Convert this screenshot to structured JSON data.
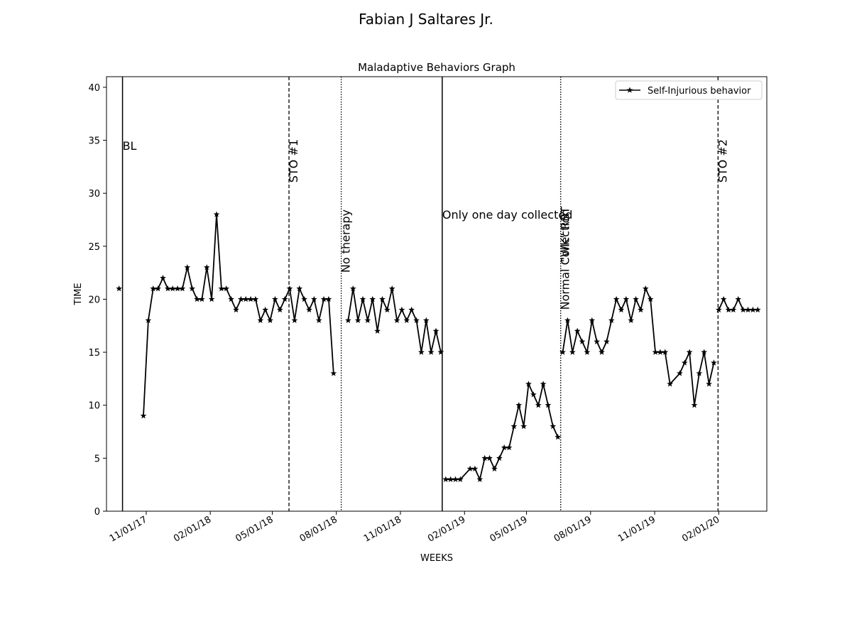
{
  "page": {
    "title": "Fabian J  Saltares Jr."
  },
  "chart_data": {
    "type": "line",
    "title": "Maladaptive Behaviors Graph",
    "xlabel": "WEEKS",
    "ylabel": "TIME",
    "ylim": [
      0,
      41
    ],
    "xlim": [
      "2017-09-05",
      "2020-04-10"
    ],
    "xticks": [
      {
        "date": "2017-11-01",
        "label": "11/01/17"
      },
      {
        "date": "2018-02-01",
        "label": "02/01/18"
      },
      {
        "date": "2018-05-01",
        "label": "05/01/18"
      },
      {
        "date": "2018-08-01",
        "label": "08/01/18"
      },
      {
        "date": "2018-11-01",
        "label": "11/01/18"
      },
      {
        "date": "2019-02-01",
        "label": "02/01/19"
      },
      {
        "date": "2019-05-01",
        "label": "05/01/19"
      },
      {
        "date": "2019-08-01",
        "label": "08/01/19"
      },
      {
        "date": "2019-11-01",
        "label": "11/01/19"
      },
      {
        "date": "2020-02-01",
        "label": "02/01/20"
      }
    ],
    "yticks": [
      0,
      5,
      10,
      15,
      20,
      25,
      30,
      35,
      40
    ],
    "grid": false,
    "legend": "upper-right",
    "series": [
      {
        "name": "Self-Injurious behavior",
        "color": "#000000",
        "marker": "star",
        "segments": [
          [
            [
              "2017-09-23",
              21
            ]
          ],
          [
            [
              "2017-10-28",
              9
            ],
            [
              "2017-11-04",
              18
            ],
            [
              "2017-11-11",
              21
            ],
            [
              "2017-11-18",
              21
            ],
            [
              "2017-11-25",
              22
            ],
            [
              "2017-12-02",
              21
            ],
            [
              "2017-12-09",
              21
            ],
            [
              "2017-12-16",
              21
            ],
            [
              "2017-12-23",
              21
            ],
            [
              "2017-12-30",
              23
            ],
            [
              "2018-01-06",
              21
            ],
            [
              "2018-01-13",
              20
            ],
            [
              "2018-01-20",
              20
            ],
            [
              "2018-01-27",
              23
            ],
            [
              "2018-02-03",
              20
            ],
            [
              "2018-02-10",
              28
            ],
            [
              "2018-02-17",
              21
            ],
            [
              "2018-02-24",
              21
            ],
            [
              "2018-03-03",
              20
            ],
            [
              "2018-03-10",
              19
            ],
            [
              "2018-03-17",
              20
            ],
            [
              "2018-03-24",
              20
            ],
            [
              "2018-03-31",
              20
            ],
            [
              "2018-04-07",
              20
            ],
            [
              "2018-04-14",
              18
            ],
            [
              "2018-04-21",
              19
            ],
            [
              "2018-04-28",
              18
            ],
            [
              "2018-05-05",
              20
            ],
            [
              "2018-05-12",
              19
            ],
            [
              "2018-05-19",
              20
            ],
            [
              "2018-05-26",
              21
            ],
            [
              "2018-06-02",
              18
            ],
            [
              "2018-06-09",
              21
            ],
            [
              "2018-06-16",
              20
            ],
            [
              "2018-06-23",
              19
            ],
            [
              "2018-06-30",
              20
            ],
            [
              "2018-07-07",
              18
            ],
            [
              "2018-07-14",
              20
            ],
            [
              "2018-07-21",
              20
            ],
            [
              "2018-07-28",
              13
            ]
          ],
          [
            [
              "2018-08-18",
              18
            ],
            [
              "2018-08-25",
              21
            ],
            [
              "2018-09-01",
              18
            ],
            [
              "2018-09-08",
              20
            ],
            [
              "2018-09-15",
              18
            ],
            [
              "2018-09-22",
              20
            ],
            [
              "2018-09-29",
              17
            ],
            [
              "2018-10-06",
              20
            ],
            [
              "2018-10-13",
              19
            ],
            [
              "2018-10-20",
              21
            ],
            [
              "2018-10-27",
              18
            ],
            [
              "2018-11-03",
              19
            ],
            [
              "2018-11-10",
              18
            ],
            [
              "2018-11-17",
              19
            ],
            [
              "2018-11-24",
              18
            ],
            [
              "2018-12-01",
              15
            ],
            [
              "2018-12-08",
              18
            ],
            [
              "2018-12-15",
              15
            ],
            [
              "2018-12-22",
              17
            ],
            [
              "2018-12-29",
              15
            ]
          ],
          [
            [
              "2019-01-05",
              3
            ],
            [
              "2019-01-12",
              3
            ],
            [
              "2019-01-19",
              3
            ],
            [
              "2019-01-26",
              3
            ],
            [
              "2019-02-09",
              4
            ],
            [
              "2019-02-16",
              4
            ],
            [
              "2019-02-23",
              3
            ],
            [
              "2019-03-02",
              5
            ],
            [
              "2019-03-09",
              5
            ],
            [
              "2019-03-16",
              4
            ],
            [
              "2019-03-23",
              5
            ],
            [
              "2019-03-30",
              6
            ],
            [
              "2019-04-06",
              6
            ],
            [
              "2019-04-13",
              8
            ],
            [
              "2019-04-20",
              10
            ],
            [
              "2019-04-27",
              8
            ],
            [
              "2019-05-04",
              12
            ],
            [
              "2019-05-11",
              11
            ],
            [
              "2019-05-18",
              10
            ],
            [
              "2019-05-25",
              12
            ],
            [
              "2019-06-01",
              10
            ],
            [
              "2019-06-08",
              8
            ],
            [
              "2019-06-15",
              7
            ]
          ],
          [
            [
              "2019-06-22",
              15
            ],
            [
              "2019-06-29",
              18
            ],
            [
              "2019-07-06",
              15
            ],
            [
              "2019-07-13",
              17
            ],
            [
              "2019-07-20",
              16
            ],
            [
              "2019-07-27",
              15
            ],
            [
              "2019-08-03",
              18
            ],
            [
              "2019-08-10",
              16
            ],
            [
              "2019-08-17",
              15
            ],
            [
              "2019-08-24",
              16
            ],
            [
              "2019-08-31",
              18
            ],
            [
              "2019-09-07",
              20
            ],
            [
              "2019-09-14",
              19
            ],
            [
              "2019-09-21",
              20
            ],
            [
              "2019-09-28",
              18
            ],
            [
              "2019-10-05",
              20
            ],
            [
              "2019-10-12",
              19
            ],
            [
              "2019-10-19",
              21
            ],
            [
              "2019-10-26",
              20
            ],
            [
              "2019-11-02",
              15
            ],
            [
              "2019-11-09",
              15
            ],
            [
              "2019-11-16",
              15
            ],
            [
              "2019-11-23",
              12
            ],
            [
              "2019-12-07",
              13
            ],
            [
              "2019-12-14",
              14
            ],
            [
              "2019-12-21",
              15
            ],
            [
              "2019-12-28",
              10
            ],
            [
              "2020-01-04",
              13
            ],
            [
              "2020-01-11",
              15
            ],
            [
              "2020-01-18",
              12
            ],
            [
              "2020-01-25",
              14
            ]
          ],
          [
            [
              "2020-02-01",
              19
            ],
            [
              "2020-02-08",
              20
            ],
            [
              "2020-02-15",
              19
            ],
            [
              "2020-02-22",
              19
            ],
            [
              "2020-02-29",
              20
            ],
            [
              "2020-03-07",
              19
            ],
            [
              "2020-03-14",
              19
            ],
            [
              "2020-03-21",
              19
            ],
            [
              "2020-03-28",
              19
            ]
          ]
        ]
      }
    ],
    "phase_lines": [
      {
        "date": "2017-09-28",
        "style": "solid",
        "label": "BL",
        "label_y": 34.5,
        "rotate": false
      },
      {
        "date": "2018-05-25",
        "style": "dashed",
        "label": "STO #1",
        "label_y": 31,
        "rotate": true
      },
      {
        "date": "2018-08-08",
        "style": "dotted",
        "label": "No therapy",
        "label_y": 22.5,
        "rotate": true
      },
      {
        "date": "2018-12-31",
        "style": "solid",
        "label": "Only one day collected",
        "label_y": 28,
        "rotate": false
      },
      {
        "date": "2019-06-19",
        "style": "dotted",
        "label": "Normal Collection",
        "label_y": 19,
        "rotate": true
      },
      {
        "date": "2019-06-19",
        "style": "dotted",
        "label": "\"WK\" RBT",
        "label_y": 23.5,
        "rotate": true
      },
      {
        "date": "2020-01-31",
        "style": "dashed",
        "label": "STO #2",
        "label_y": 31,
        "rotate": true
      }
    ]
  }
}
